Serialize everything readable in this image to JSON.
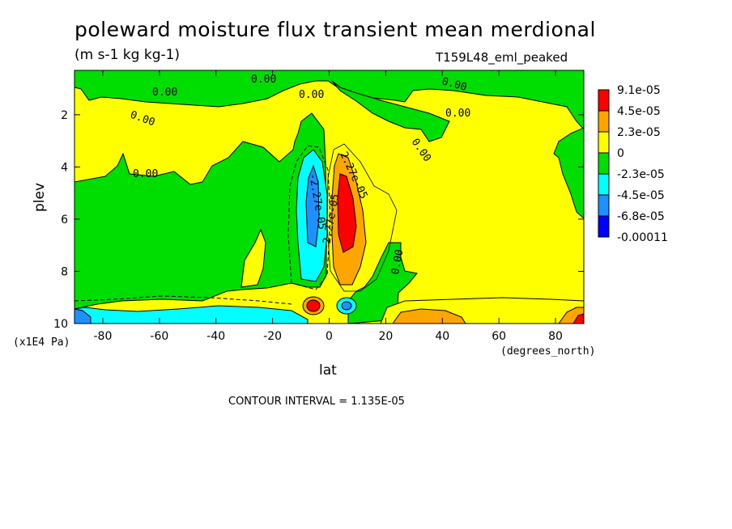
{
  "chart_data": {
    "type": "heatmap",
    "title": "poleward moisture flux transient mean merdional",
    "subtitle": "(m s-1 kg kg-1)",
    "run_label": "T159L48_eml_peaked",
    "xlabel": "lat",
    "ylabel": "plev",
    "x_units": "(degrees_north)",
    "y_units": "(x1E4 Pa)",
    "xlim": [
      -90,
      90
    ],
    "ylim": [
      10,
      0.3
    ],
    "x_ticks": [
      -80,
      -60,
      -40,
      -20,
      0,
      20,
      40,
      60,
      80
    ],
    "y_ticks": [
      2,
      4,
      6,
      8,
      10
    ],
    "x_tick_labels": [
      "-80",
      "-60",
      "-40",
      "-20",
      "0",
      "20",
      "40",
      "60",
      "80"
    ],
    "y_tick_labels": [
      "2",
      "4",
      "6",
      "8",
      "10"
    ],
    "contour_interval_text": "CONTOUR INTERVAL = 1.135E-05",
    "legend": {
      "placement": "right",
      "labels": [
        "9.1e-05",
        "4.5e-05",
        "2.3e-05",
        "0",
        "-2.3e-05",
        "-4.5e-05",
        "-6.8e-05",
        "-0.00011"
      ],
      "colors": [
        "#ff0000",
        "#ffa500",
        "#ffff00",
        "#00dd00",
        "#00ffff",
        "#1e90ff",
        "#0000ff"
      ]
    },
    "contour_labels": [
      "0.00",
      "0.00",
      "0.00",
      "0.00",
      "0.00",
      "0.00",
      "0.00",
      "0.00",
      "0.00",
      "-2.27e-05",
      "-2.27e-05",
      "2.27e-05"
    ],
    "features": [
      {
        "name": "equatorial negative column",
        "lat": -7,
        "plev_range": [
          3.5,
          8.5
        ],
        "level": "-4.5e-05"
      },
      {
        "name": "equatorial positive column",
        "lat": 7,
        "plev_range": [
          3.5,
          8
        ],
        "level": "9.1e-05"
      },
      {
        "name": "near-surface positive core",
        "lat": -6,
        "plev": 9.3,
        "level": "9.1e-05"
      },
      {
        "name": "near-surface negative core",
        "lat": 6,
        "plev": 9.3,
        "level": "-6.8e-05"
      },
      {
        "name": "southern near-surface negative",
        "lat_range": [
          -90,
          -20
        ],
        "plev": 9.7,
        "level": "-2.3e-05"
      },
      {
        "name": "northern near-surface positive",
        "lat_range": [
          25,
          90
        ],
        "plev": 9.7,
        "level": "4.5e-05"
      }
    ]
  }
}
